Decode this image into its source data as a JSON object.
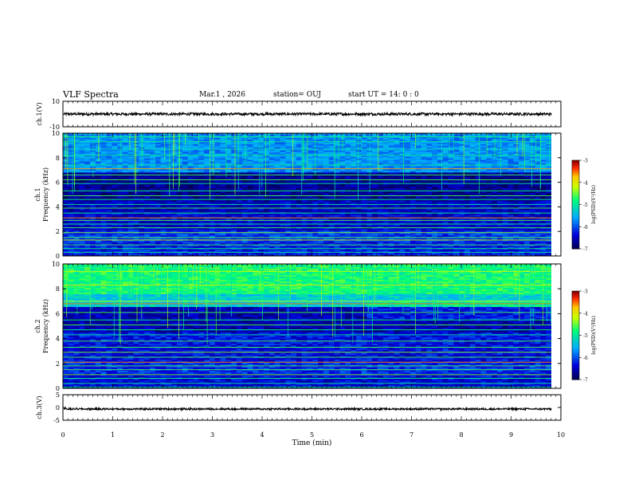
{
  "header": {
    "title": "VLF Spectra",
    "date": "Mar.1 , 2026",
    "station": "station= OUJ",
    "start_time": "start  UT =  14: 0  : 0"
  },
  "chart_data": [
    {
      "type": "line",
      "title": "",
      "ylabel": "ch.1(V)",
      "ylim": [
        -10,
        10
      ],
      "y_ticks": [
        "10",
        "-10"
      ],
      "xlim": [
        0,
        10
      ],
      "series": [
        {
          "name": "ch.1 waveform",
          "mean": 0,
          "amplitude": 1.0
        }
      ]
    },
    {
      "type": "heatmap",
      "ylabel": "ch.1\nFrequency (kHz)",
      "ylim": [
        0,
        10
      ],
      "y_ticks": [
        "0",
        "2",
        "4",
        "6",
        "8",
        "10"
      ],
      "xlim": [
        0,
        9.85
      ],
      "colorbar": {
        "label": "log(PSD)(V²/Hz)",
        "ticks": [
          "-3",
          "-4",
          "-5",
          "-6",
          "-7"
        ],
        "range": [
          -7,
          -3
        ]
      }
    },
    {
      "type": "heatmap",
      "ylabel": "ch.2\nFrequency (kHz)",
      "ylim": [
        0,
        10
      ],
      "y_ticks": [
        "0",
        "2",
        "4",
        "6",
        "8",
        "10"
      ],
      "xlim": [
        0,
        9.85
      ],
      "colorbar": {
        "label": "log(PSD)(V²/Hz)",
        "ticks": [
          "-3",
          "-4",
          "-5",
          "-6",
          "-7"
        ],
        "range": [
          -7,
          -3
        ]
      }
    },
    {
      "type": "line",
      "ylabel": "ch.3(V)",
      "ylim": [
        -5,
        5
      ],
      "y_ticks": [
        "5",
        "0",
        "-5"
      ],
      "xlim": [
        0,
        10
      ],
      "series": [
        {
          "name": "ch.3 waveform",
          "mean": -0.6,
          "amplitude": 0.35
        }
      ]
    }
  ],
  "x_axis": {
    "label": "Time  (min)",
    "ticks": [
      "0",
      "1",
      "2",
      "3",
      "4",
      "5",
      "6",
      "7",
      "8",
      "9",
      "10"
    ]
  }
}
